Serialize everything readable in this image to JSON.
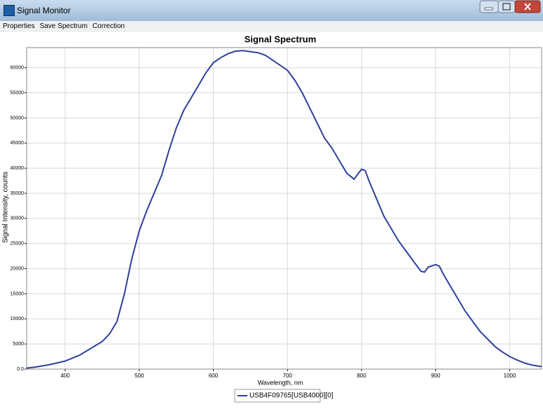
{
  "window": {
    "title": "Signal Monitor"
  },
  "menu": [
    "Properties",
    "Save Spectrum",
    "Correction"
  ],
  "chart_data": {
    "type": "line",
    "title": "Signal Spectrum",
    "x_label": "Wavelength, nm",
    "y_label": "Signal Intensity, counts",
    "x": [
      348,
      360,
      380,
      400,
      420,
      440,
      450,
      460,
      470,
      480,
      490,
      500,
      510,
      520,
      530,
      540,
      550,
      560,
      570,
      580,
      590,
      600,
      610,
      620,
      630,
      640,
      650,
      660,
      670,
      680,
      690,
      700,
      710,
      720,
      730,
      740,
      750,
      760,
      770,
      780,
      790,
      795,
      800,
      805,
      810,
      820,
      830,
      840,
      850,
      860,
      870,
      880,
      885,
      890,
      900,
      905,
      910,
      920,
      930,
      940,
      950,
      960,
      970,
      980,
      990,
      1000,
      1010,
      1020,
      1030,
      1043
    ],
    "series": [
      {
        "name": "USB4F09765[USB4000][0]",
        "color": "#2e3f9e",
        "values": [
          200,
          400,
          900,
          1600,
          2800,
          4600,
          5500,
          7000,
          9500,
          15000,
          22000,
          27500,
          31500,
          35000,
          38500,
          43500,
          48000,
          51500,
          54000,
          56500,
          59000,
          61000,
          62000,
          62800,
          63300,
          63400,
          63200,
          63000,
          62500,
          61500,
          60500,
          59500,
          57500,
          55000,
          52000,
          49000,
          46000,
          44000,
          41500,
          39000,
          37800,
          38800,
          39800,
          39500,
          37500,
          34000,
          30500,
          28000,
          25500,
          23500,
          21500,
          19500,
          19300,
          20300,
          20800,
          20500,
          19000,
          16500,
          14000,
          11500,
          9500,
          7500,
          6000,
          4500,
          3400,
          2500,
          1800,
          1200,
          800,
          500
        ]
      }
    ],
    "xlim": [
      348,
      1043
    ],
    "ylim": [
      0,
      64000
    ],
    "xticks": [
      400,
      500,
      600,
      700,
      800,
      900,
      1000
    ],
    "yticks": [
      {
        "value": 0,
        "label": "0.0"
      },
      5000,
      10000,
      15000,
      20000,
      25000,
      30000,
      35000,
      40000,
      45000,
      50000,
      55000,
      60000
    ],
    "grid": true
  }
}
